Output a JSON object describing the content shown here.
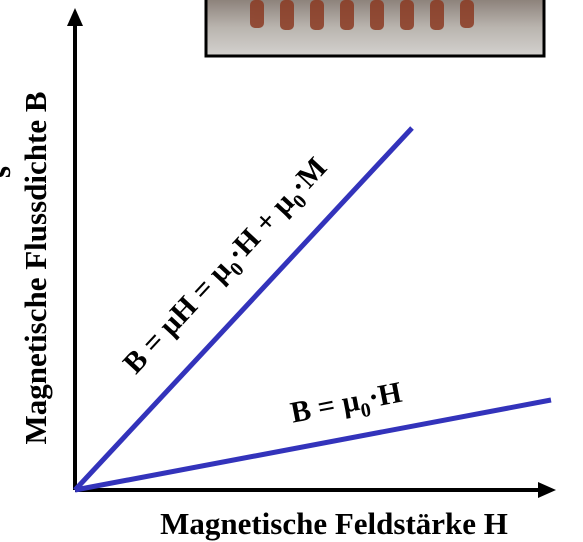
{
  "axes": {
    "y_label": "Magnetische Flussdichte B",
    "x_label": "Magnetische Feldstärke H",
    "cut_text": "s"
  },
  "lines": {
    "upper": {
      "parts": [
        "B = μH = μ",
        "0",
        "·H + μ",
        "0",
        "·M"
      ]
    },
    "lower": {
      "parts": [
        "B = μ",
        "0",
        "·H"
      ]
    }
  }
}
